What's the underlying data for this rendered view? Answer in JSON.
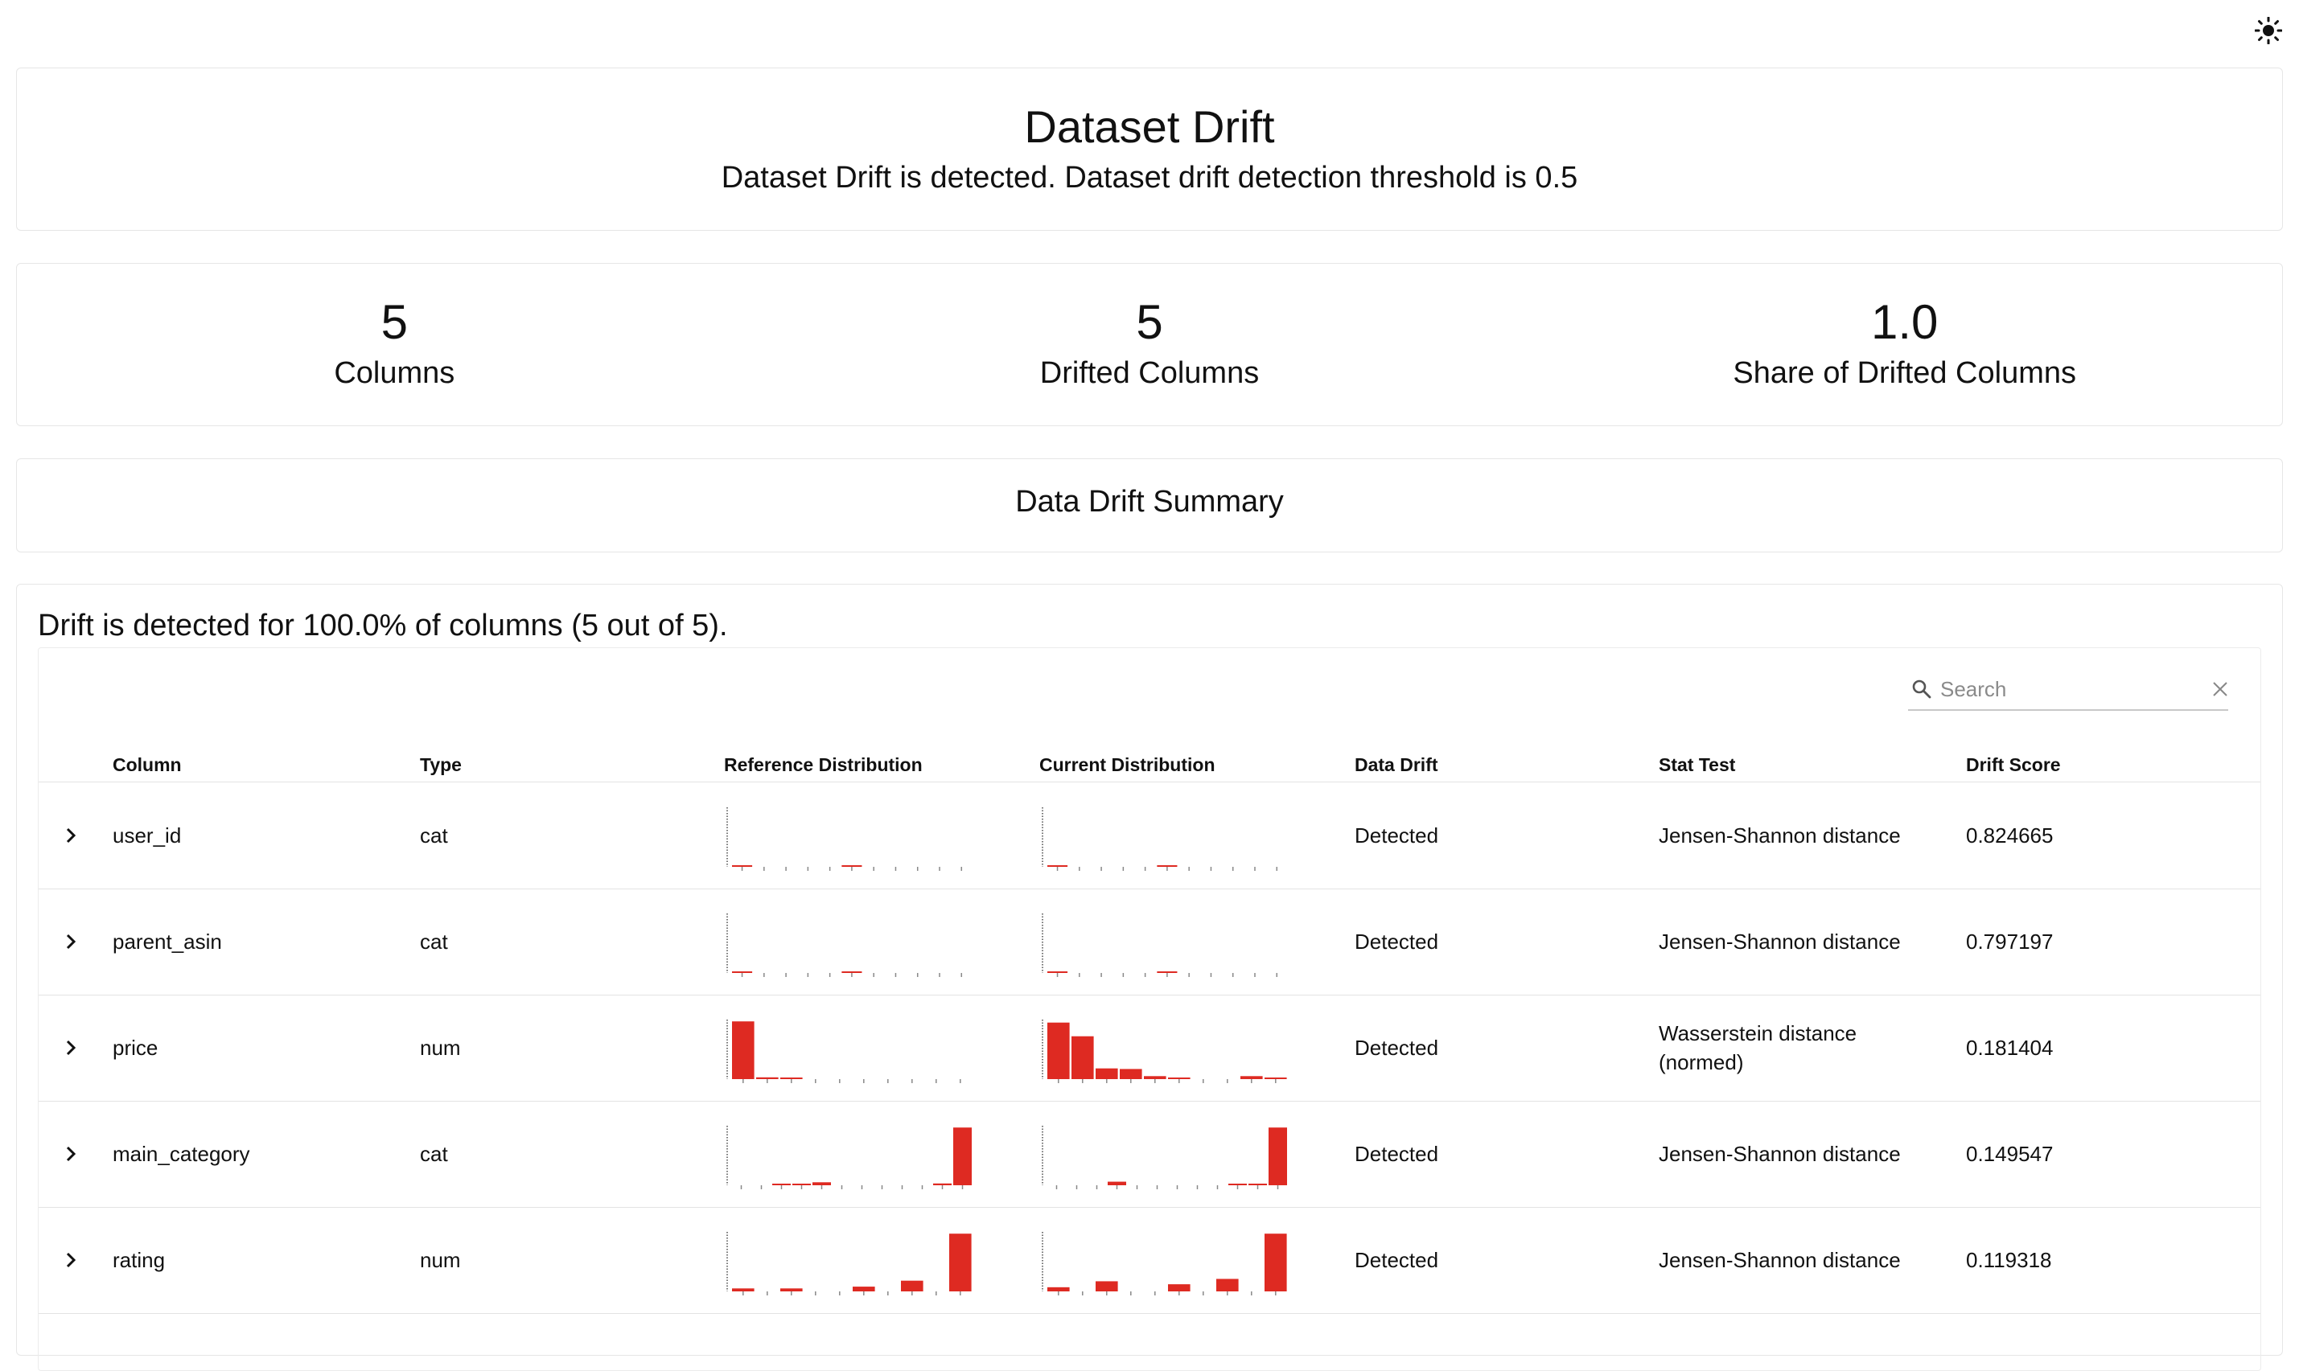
{
  "header": {
    "theme_icon": "sun-icon"
  },
  "dataset_drift": {
    "title": "Dataset Drift",
    "subtitle": "Dataset Drift is detected. Dataset drift detection threshold is 0.5"
  },
  "counters": [
    {
      "value": "5",
      "label": "Columns"
    },
    {
      "value": "5",
      "label": "Drifted Columns"
    },
    {
      "value": "1.0",
      "label": "Share of Drifted Columns"
    }
  ],
  "summary": {
    "title": "Data Drift Summary",
    "message": "Drift is detected for 100.0% of columns (5 out of 5)."
  },
  "search": {
    "placeholder": "Search",
    "value": ""
  },
  "table": {
    "columns": [
      "Column",
      "Type",
      "Reference Distribution",
      "Current Distribution",
      "Data Drift",
      "Stat Test",
      "Drift Score"
    ],
    "rows": [
      {
        "column": "user_id",
        "type": "cat",
        "data_drift": "Detected",
        "stat_test": "Jensen-Shannon distance",
        "drift_score": "0.824665",
        "ref_hist": [
          0.002,
          0,
          0,
          0,
          0,
          0.004,
          0,
          0,
          0,
          0,
          0
        ],
        "cur_hist": [
          0.002,
          0,
          0,
          0,
          0,
          0.004,
          0,
          0,
          0,
          0,
          0
        ]
      },
      {
        "column": "parent_asin",
        "type": "cat",
        "data_drift": "Detected",
        "stat_test": "Jensen-Shannon distance",
        "drift_score": "0.797197",
        "ref_hist": [
          0.002,
          0,
          0,
          0,
          0,
          0.004,
          0,
          0,
          0,
          0,
          0
        ],
        "cur_hist": [
          0.002,
          0,
          0,
          0,
          0,
          0.004,
          0,
          0,
          0,
          0,
          0
        ]
      },
      {
        "column": "price",
        "type": "num",
        "data_drift": "Detected",
        "stat_test": "Wasserstein distance (normed)",
        "drift_score": "0.181404",
        "ref_hist": [
          0.97,
          0.03,
          0.005,
          0,
          0,
          0,
          0,
          0,
          0,
          0
        ],
        "cur_hist": [
          0.95,
          0.72,
          0.18,
          0.17,
          0.05,
          0.01,
          0,
          0,
          0.05,
          0.02
        ]
      },
      {
        "column": "main_category",
        "type": "cat",
        "data_drift": "Detected",
        "stat_test": "Jensen-Shannon distance",
        "drift_score": "0.149547",
        "ref_hist": [
          0,
          0,
          0.02,
          0.02,
          0.05,
          0,
          0,
          0,
          0,
          0,
          0.03,
          0.97
        ],
        "cur_hist": [
          0,
          0,
          0,
          0.06,
          0,
          0,
          0,
          0,
          0,
          0.02,
          0.02,
          0.97
        ]
      },
      {
        "column": "rating",
        "type": "num",
        "data_drift": "Detected",
        "stat_test": "Jensen-Shannon distance",
        "drift_score": "0.119318",
        "ref_hist": [
          0.05,
          0,
          0.05,
          0,
          0,
          0.08,
          0,
          0.18,
          0,
          0.97
        ],
        "cur_hist": [
          0.07,
          0,
          0.17,
          0,
          0,
          0.12,
          0,
          0.21,
          0,
          0.97
        ]
      }
    ]
  },
  "colors": {
    "bar": "#de2a22",
    "border": "#e6e6e6"
  }
}
